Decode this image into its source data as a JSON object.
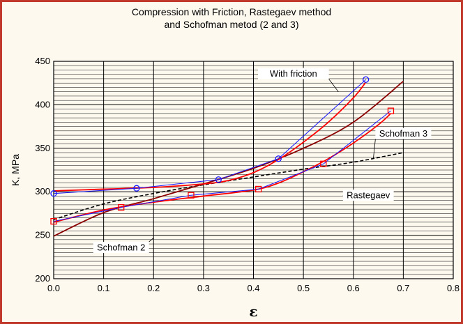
{
  "chart_data": {
    "type": "line",
    "title_lines": [
      "Compression with Friction, Rastegaev method",
      "and Schofman metod (2 and 3)"
    ],
    "xlabel": "ε",
    "ylabel": "K, MPa",
    "xlim": [
      0,
      0.8
    ],
    "ylim": [
      200,
      450
    ],
    "xticks": [
      0.0,
      0.1,
      0.2,
      0.3,
      0.4,
      0.5,
      0.6,
      0.7,
      0.8
    ],
    "xtick_labels": [
      "0.0",
      "0.1",
      "0.2",
      "0.3",
      "0.4",
      "0.5",
      "0.6",
      "0.7",
      "0.8"
    ],
    "yticks": [
      200,
      250,
      300,
      350,
      400,
      450
    ],
    "ytick_labels": [
      "200",
      "250",
      "300",
      "350",
      "400",
      "450"
    ],
    "grid": true,
    "colors": {
      "blue": "#1a1aff",
      "red": "#ff0000",
      "darkred": "#8b0000",
      "black": "#000000",
      "frame": "#c0392b",
      "plot_bg": "#fdf9ef"
    },
    "series": [
      {
        "label": "friction-points",
        "style": "blue-line-circle",
        "x": [
          0.0,
          0.166,
          0.33,
          0.45,
          0.625
        ],
        "y": [
          298,
          304,
          314,
          338,
          429
        ]
      },
      {
        "label": "friction-fit",
        "style": "red-smooth",
        "x": [
          0.0,
          0.1,
          0.2,
          0.3,
          0.35,
          0.4,
          0.45,
          0.5,
          0.55,
          0.6,
          0.625
        ],
        "y": [
          301,
          303,
          305,
          309,
          313,
          322,
          337,
          357,
          380,
          408,
          426
        ]
      },
      {
        "label": "rastegaev-points",
        "style": "blue-line-square",
        "x": [
          0.0,
          0.135,
          0.275,
          0.41,
          0.54,
          0.675
        ],
        "y": [
          266,
          282,
          296,
          303,
          332,
          393
        ]
      },
      {
        "label": "rastegaev-fit",
        "style": "red-smooth",
        "x": [
          0.0,
          0.1,
          0.2,
          0.3,
          0.4,
          0.45,
          0.5,
          0.55,
          0.6,
          0.65,
          0.675
        ],
        "y": [
          265,
          279,
          288,
          295,
          302,
          310,
          323,
          338,
          356,
          377,
          390
        ]
      },
      {
        "label": "schofman2",
        "style": "darkred-solid",
        "x": [
          0.0,
          0.1,
          0.2,
          0.3,
          0.4,
          0.5,
          0.6,
          0.7
        ],
        "y": [
          249,
          276,
          292,
          309,
          327,
          350,
          380,
          427
        ]
      },
      {
        "label": "schofman3",
        "style": "black-dashed",
        "x": [
          0.0,
          0.1,
          0.2,
          0.3,
          0.4,
          0.5,
          0.6,
          0.7
        ],
        "y": [
          268,
          286,
          298,
          308,
          317,
          326,
          334,
          345
        ]
      }
    ],
    "annotations": [
      {
        "text": "With friction",
        "x": 0.48,
        "y": 436,
        "tip_x": 0.57,
        "tip_y": 415
      },
      {
        "text": "Schofman 3",
        "x": 0.7,
        "y": 367,
        "tip_x": 0.64,
        "tip_y": 338
      },
      {
        "text": "Rastegaev",
        "x": 0.63,
        "y": 296,
        "tip_x": 0.59,
        "tip_y": 290
      },
      {
        "text": "Schofman 2",
        "x": 0.135,
        "y": 236,
        "tip_x": 0.2,
        "tip_y": 247
      }
    ]
  }
}
